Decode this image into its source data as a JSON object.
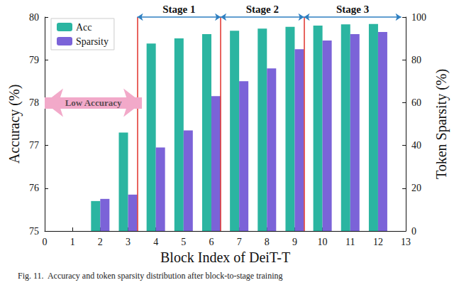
{
  "chart_data": {
    "type": "bar",
    "x_label": "Block Index of DeiT-T",
    "y_label": "Accuracy (%)",
    "y2_label": "Token Sparsity (%)",
    "caption": "Fig. 11.  Accuracy and token sparsity distribution after block-to-stage training",
    "x": [
      2,
      3,
      4,
      5,
      6,
      7,
      8,
      9,
      10,
      11,
      12
    ],
    "series": [
      {
        "name": "Acc",
        "color": "#2bb5a1",
        "axis": "y",
        "values": [
          75.7,
          77.3,
          79.38,
          79.5,
          79.6,
          79.68,
          79.73,
          79.77,
          79.8,
          79.83,
          79.84
        ]
      },
      {
        "name": "Sparsity",
        "color": "#7b63d8",
        "axis": "y2",
        "values": [
          15,
          17,
          39,
          47,
          63,
          70,
          76,
          85,
          89,
          92,
          93
        ]
      }
    ],
    "xlim": [
      0,
      13
    ],
    "xticks": [
      0,
      1,
      2,
      3,
      4,
      5,
      6,
      7,
      8,
      9,
      10,
      11,
      12,
      13
    ],
    "ylim": [
      75,
      80
    ],
    "yticks": [
      75,
      76,
      77,
      78,
      79,
      80
    ],
    "y2lim": [
      0,
      100
    ],
    "y2ticks": [
      0,
      20,
      40,
      60,
      80,
      100
    ],
    "annotations": [
      {
        "text": "Stage 1",
        "from": 3.5,
        "to": 6.5
      },
      {
        "text": "Stage 2",
        "from": 6.5,
        "to": 9.5
      },
      {
        "text": "Stage 3",
        "from": 9.5,
        "to": 13
      },
      {
        "text": "Low Accuracy",
        "from": 0,
        "to": 3.5,
        "y": 78
      }
    ],
    "legend": "upper left",
    "grid": false
  }
}
